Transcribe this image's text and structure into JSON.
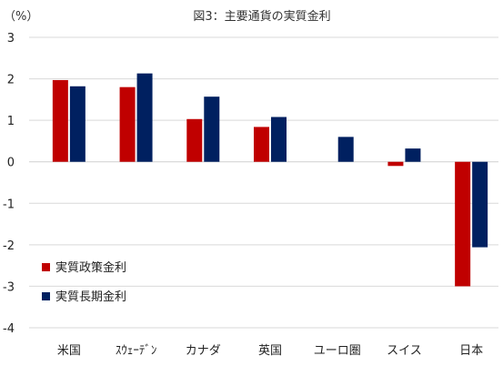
{
  "chart_data": {
    "type": "bar",
    "title": "図3：主要通貨の実質金利",
    "unit_label": "（%）",
    "categories": [
      "米国",
      "ｽｳｪｰﾃﾞﾝ",
      "カナダ",
      "英国",
      "ユーロ圏",
      "スイス",
      "日本"
    ],
    "series": [
      {
        "name": "実質政策金利",
        "color": "#c00000",
        "values": [
          1.97,
          1.8,
          1.03,
          0.84,
          null,
          -0.1,
          -3.0
        ]
      },
      {
        "name": "実質長期金利",
        "color": "#002060",
        "values": [
          1.82,
          2.13,
          1.57,
          1.08,
          0.6,
          0.32,
          -2.06
        ]
      }
    ],
    "ylim": [
      -4,
      3
    ],
    "yticks": [
      3,
      2,
      1,
      0,
      -1,
      -2,
      -3,
      -4
    ],
    "grid": true,
    "legend_position": "bottom-left"
  }
}
